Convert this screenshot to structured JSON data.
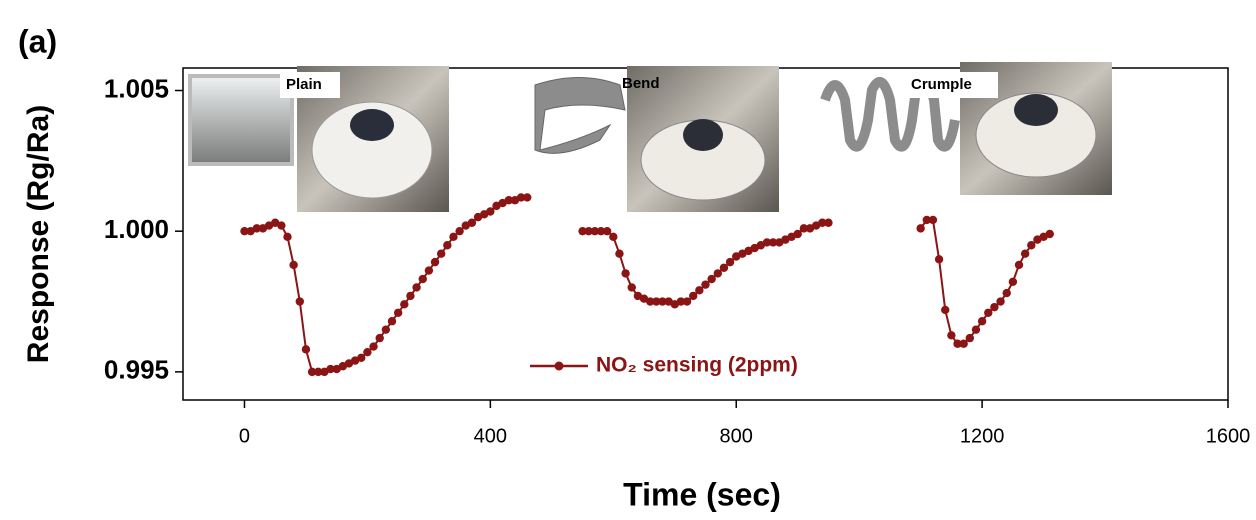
{
  "chart_data": {
    "type": "line",
    "panel_label": "(a)",
    "x_label": "Time (sec)",
    "y_label": "Response (Rg/Ra)",
    "annotations": [
      "Plain",
      "Bend",
      "Crumple"
    ],
    "xlim": [
      -100,
      1600
    ],
    "xticks": [
      0,
      400,
      800,
      1200,
      1600
    ],
    "ylim": [
      0.994,
      1.0058
    ],
    "yticks": [
      0.995,
      {
        "value": 1,
        "label": "1.000"
      },
      1.005
    ],
    "legend": "bottom-center",
    "x": [
      0,
      10,
      20,
      30,
      40,
      50,
      60,
      70,
      80,
      90,
      100,
      110,
      120,
      130,
      140,
      150,
      160,
      170,
      180,
      190,
      200,
      210,
      220,
      230,
      240,
      250,
      260,
      270,
      280,
      290,
      300,
      310,
      320,
      330,
      340,
      350,
      360,
      370,
      380,
      390,
      400,
      410,
      420,
      430,
      440,
      450,
      460,
      500,
      550,
      560,
      570,
      580,
      590,
      600,
      610,
      620,
      630,
      640,
      650,
      660,
      670,
      680,
      690,
      700,
      710,
      720,
      730,
      740,
      750,
      760,
      770,
      780,
      790,
      800,
      810,
      820,
      830,
      840,
      850,
      860,
      870,
      880,
      890,
      900,
      910,
      920,
      930,
      940,
      950,
      1030,
      1100,
      1110,
      1120,
      1130,
      1140,
      1150,
      1160,
      1170,
      1180,
      1190,
      1200,
      1210,
      1220,
      1230,
      1240,
      1250,
      1260,
      1270,
      1280,
      1290,
      1300,
      1310
    ],
    "series": [
      {
        "name": "NO₂ sensing (2ppm)",
        "color": "#8b1414",
        "values": [
          1.0,
          1.0,
          1.0001,
          1.0001,
          1.0002,
          1.0003,
          1.0002,
          0.9998,
          0.9988,
          0.9975,
          0.9958,
          0.995,
          0.995,
          0.995,
          0.9951,
          0.9951,
          0.9952,
          0.9953,
          0.9954,
          0.9955,
          0.9957,
          0.9959,
          0.9962,
          0.9965,
          0.9968,
          0.9971,
          0.9974,
          0.9977,
          0.998,
          0.9983,
          0.9986,
          0.9989,
          0.9992,
          0.9995,
          0.9998,
          1.0,
          1.0002,
          1.0003,
          1.0005,
          1.0006,
          1.0007,
          1.0009,
          1.001,
          1.0011,
          1.0011,
          1.0012,
          1.0012,
          null,
          1.0,
          1.0,
          1.0,
          1.0,
          1.0,
          0.9998,
          0.9992,
          0.9985,
          0.998,
          0.9977,
          0.9976,
          0.9975,
          0.9975,
          0.9975,
          0.9975,
          0.9974,
          0.9975,
          0.9975,
          0.9977,
          0.9979,
          0.9981,
          0.9983,
          0.9985,
          0.9987,
          0.9989,
          0.9991,
          0.9992,
          0.9993,
          0.9994,
          0.9995,
          0.9996,
          0.9996,
          0.9996,
          0.9997,
          0.9998,
          0.9999,
          1.0001,
          1.0001,
          1.0002,
          1.0003,
          1.0003,
          null,
          1.0001,
          1.0004,
          1.0004,
          0.999,
          0.9972,
          0.9963,
          0.996,
          0.996,
          0.9962,
          0.9965,
          0.9968,
          0.9971,
          0.9973,
          0.9975,
          0.9978,
          0.9982,
          0.9988,
          0.9992,
          0.9995,
          0.9997,
          0.9998,
          0.9999
        ]
      }
    ]
  }
}
